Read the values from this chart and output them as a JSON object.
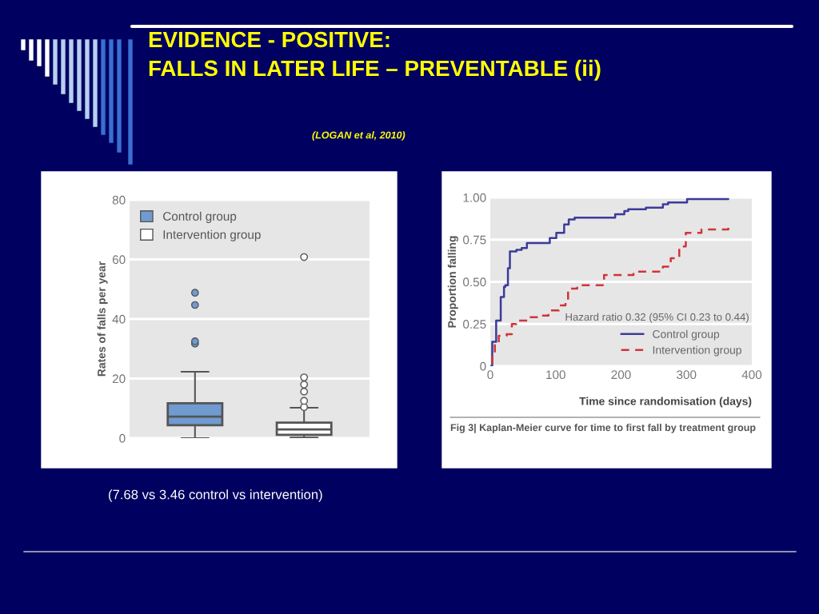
{
  "chart_data": [
    {
      "type": "box",
      "title": "EVIDENCE - POSITIVE:\nFALLS IN LATER LIFE – PREVENTABLE (ii)",
      "subtitle": "(LOGAN et al, 2010)",
      "ylabel": "Rates of falls per year",
      "categories": [
        null,
        null
      ],
      "ylim": [
        0,
        80
      ],
      "yticks": [
        0,
        20,
        40,
        60,
        80
      ],
      "grid": "y",
      "legend": "top left",
      "series": [
        {
          "name": "Control group",
          "color": "#6f9bd0",
          "boxes": [
            {
              "low": 0,
              "q1": 4.3,
              "median": 7.2,
              "q3": 11.7,
              "high": 22.3,
              "outliers": [
                31.7,
                32.5,
                44.7,
                48.8
              ]
            },
            null
          ]
        },
        {
          "name": "Intervention group",
          "color": "#ffffff",
          "boxes": [
            null,
            {
              "low": 0.2,
              "q1": 1.1,
              "median": 2.9,
              "q3": 5.2,
              "high": 10.2,
              "outliers": [
                10.4,
                12.5,
                15.6,
                18,
                20.4,
                60.8
              ]
            }
          ]
        }
      ],
      "annotations": [
        "(7.68 vs 3.46 control vs intervention)"
      ]
    },
    {
      "type": "step",
      "title": "Fig 3| Kaplan-Meier curve for time to first fall by treatment group",
      "xlabel": "Time since randomisation (days)",
      "ylabel": "Proportion falling",
      "xlim": [
        0,
        400
      ],
      "xticks": [
        0,
        100,
        200,
        300,
        400
      ],
      "ylim": [
        0,
        1
      ],
      "yticks": [
        0,
        {
          "value": 0.25,
          "label": "0.25"
        },
        {
          "value": 0.5,
          "label": "0.50"
        },
        {
          "value": 0.75,
          "label": "0.75"
        },
        {
          "value": 1,
          "label": "1.00"
        }
      ],
      "grid": "y",
      "legend": "bottom right",
      "series": [
        {
          "name": "Control group",
          "color": "#3b3b9a",
          "line_style": "solid",
          "x": [
            0,
            3,
            9,
            13,
            16,
            21,
            23,
            27,
            30,
            31,
            40,
            48,
            56,
            84,
            91,
            101,
            109,
            113,
            120,
            129,
            189,
            191,
            203,
            205,
            211,
            236,
            238,
            262,
            264,
            272,
            299,
            301,
            364
          ],
          "values": [
            0,
            0.145,
            0.27,
            0.27,
            0.41,
            0.47,
            0.48,
            0.58,
            0.68,
            0.68,
            0.69,
            0.7,
            0.73,
            0.73,
            0.76,
            0.79,
            0.79,
            0.84,
            0.87,
            0.88,
            0.88,
            0.9,
            0.9,
            0.92,
            0.93,
            0.93,
            0.94,
            0.94,
            0.96,
            0.97,
            0.97,
            0.99,
            0.99
          ]
        },
        {
          "name": "Intervention group",
          "color": "#d0343a",
          "line_style": "dashed",
          "x": [
            0,
            3,
            7,
            13,
            25,
            33,
            40,
            60,
            76,
            89,
            105,
            115,
            119,
            133,
            166,
            174,
            211,
            219,
            252,
            264,
            276,
            289,
            299,
            317,
            323,
            364
          ],
          "values": [
            0,
            0.07,
            0.14,
            0.18,
            0.19,
            0.25,
            0.27,
            0.29,
            0.3,
            0.33,
            0.36,
            0.39,
            0.46,
            0.48,
            0.48,
            0.54,
            0.54,
            0.56,
            0.56,
            0.59,
            0.64,
            0.71,
            0.79,
            0.79,
            0.81,
            0.82
          ]
        }
      ],
      "annotations": [
        "Hazard ratio 0.32 (95% CI 0.23 to 0.44)"
      ]
    }
  ]
}
